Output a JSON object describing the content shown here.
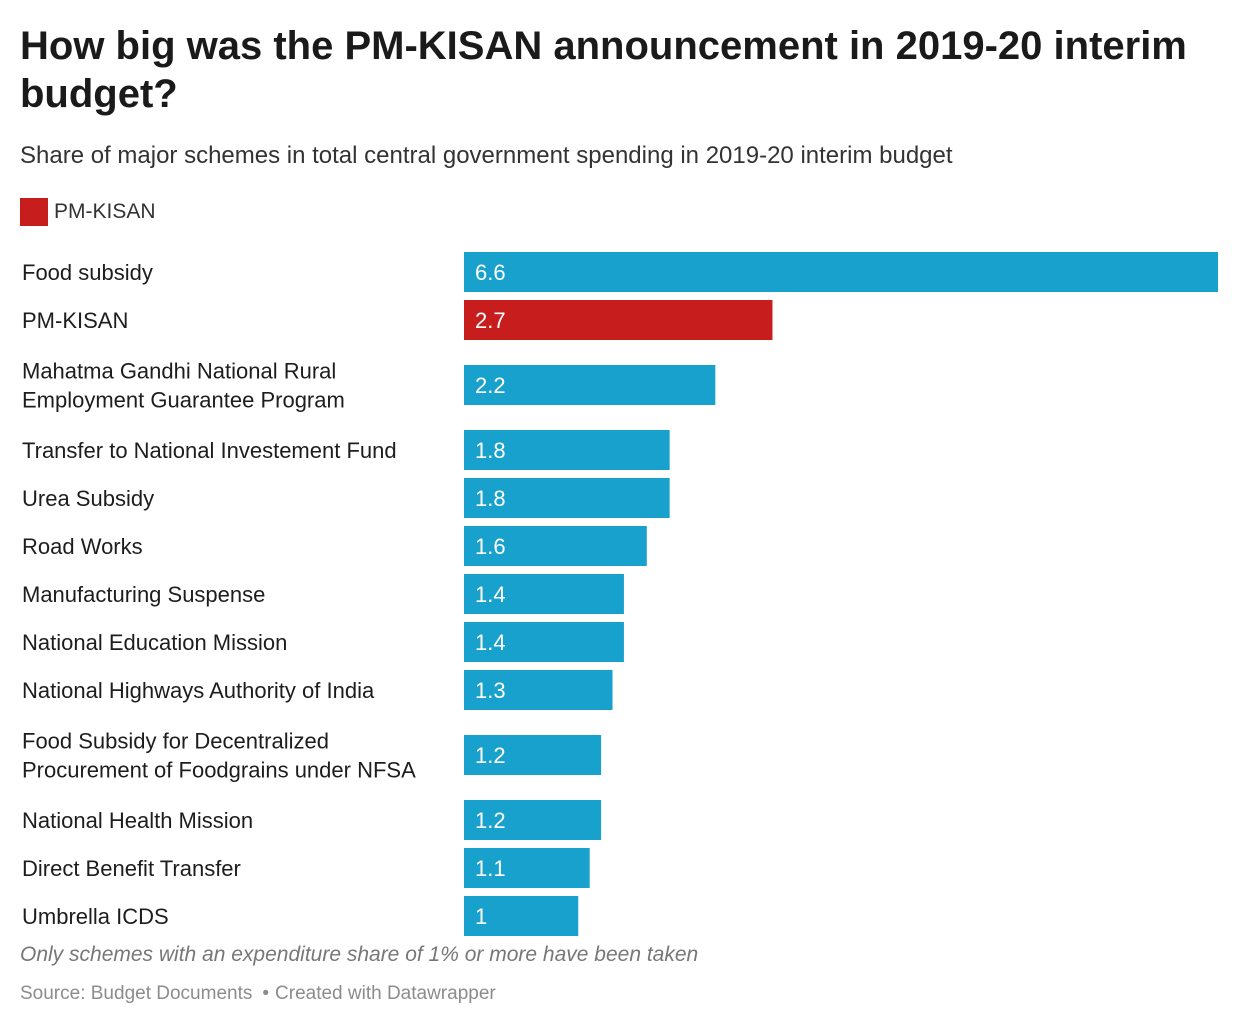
{
  "title": "How big was the PM-KISAN announcement in 2019-20 interim budget?",
  "subtitle": "Share of major schemes in total central government spending in 2019-20 interim budget",
  "legend": {
    "label": "PM-KISAN",
    "color": "#c71e1d"
  },
  "notes": "Only schemes with an expenditure share of 1% or more have been taken",
  "footer": {
    "source": "Source: Budget Documents",
    "separator": "•",
    "credit": "Created with Datawrapper"
  },
  "colors": {
    "default_bar": "#18a1cd",
    "highlight_bar": "#c71e1d",
    "value_label": "#ffffff",
    "category_label": "#1d1d1d"
  },
  "chart_data": {
    "type": "bar",
    "orientation": "horizontal",
    "highlight": "PM-KISAN",
    "categories": [
      [
        "Food subsidy"
      ],
      [
        "PM-KISAN"
      ],
      [
        "Mahatma Gandhi National Rural",
        "Employment Guarantee Program"
      ],
      [
        "Transfer to National Investement Fund"
      ],
      [
        "Urea Subsidy"
      ],
      [
        "Road Works"
      ],
      [
        "Manufacturing Suspense"
      ],
      [
        "National Education Mission"
      ],
      [
        "National Highways Authority of India"
      ],
      [
        "Food Subsidy for Decentralized",
        "Procurement of Foodgrains under NFSA"
      ],
      [
        "National Health Mission"
      ],
      [
        "Direct Benefit Transfer"
      ],
      [
        "Umbrella ICDS"
      ]
    ],
    "values": [
      6.6,
      2.7,
      2.2,
      1.8,
      1.8,
      1.6,
      1.4,
      1.4,
      1.3,
      1.2,
      1.2,
      1.1,
      1
    ],
    "value_labels": [
      "6.6",
      "2.7",
      "2.2",
      "1.8",
      "1.8",
      "1.6",
      "1.4",
      "1.4",
      "1.3",
      "1.2",
      "1.2",
      "1.1",
      "1"
    ],
    "xlim": [
      0,
      6.6
    ],
    "grid": false
  }
}
